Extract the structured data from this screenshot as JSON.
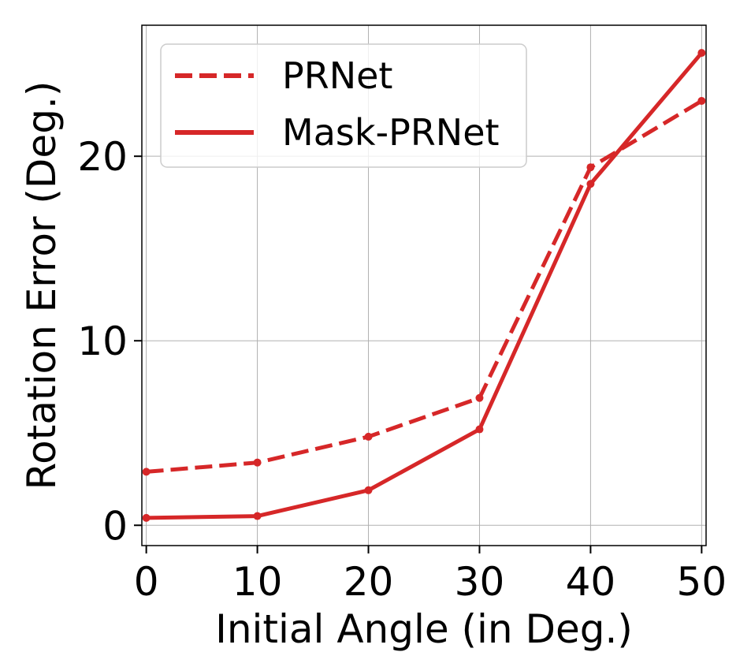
{
  "chart_data": {
    "type": "line",
    "x": [
      0,
      10,
      20,
      30,
      40,
      50
    ],
    "xlabel": "Initial Angle (in Deg.)",
    "ylabel": "Rotation Error (Deg.)",
    "xlim": [
      -0.4,
      50.4
    ],
    "ylim": [
      -1.1,
      27.1
    ],
    "xticks": [
      0,
      10,
      20,
      30,
      40,
      50
    ],
    "yticks": [
      0,
      10,
      20
    ],
    "xtick_labels": [
      "0",
      "10",
      "20",
      "30",
      "40",
      "50"
    ],
    "ytick_labels": [
      "0",
      "10",
      "20"
    ],
    "grid": true,
    "legend_position": "top-left",
    "series": [
      {
        "name": "PRNet",
        "style": "dashed",
        "color": "#d62728",
        "values": [
          2.9,
          3.4,
          4.8,
          6.9,
          19.4,
          23.0
        ]
      },
      {
        "name": "Mask-PRNet",
        "style": "solid",
        "color": "#d62728",
        "values": [
          0.4,
          0.5,
          1.9,
          5.2,
          18.5,
          25.6
        ]
      }
    ]
  }
}
